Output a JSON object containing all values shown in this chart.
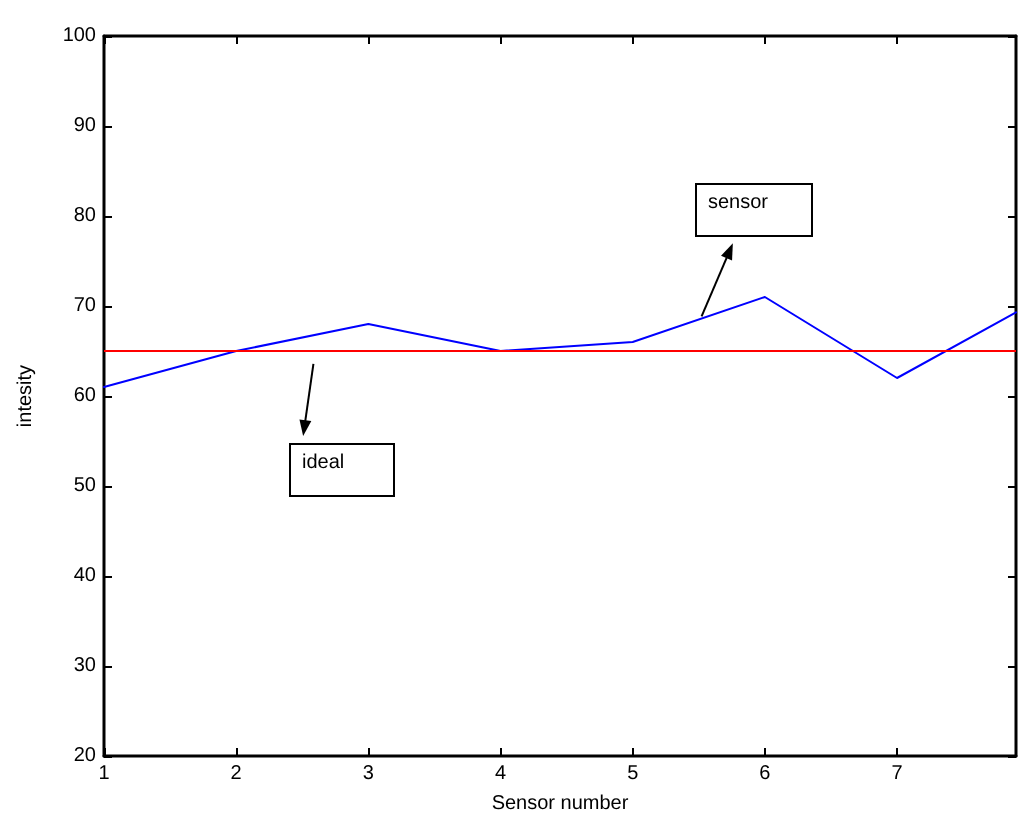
{
  "chart_data": {
    "type": "line",
    "xlabel": "Sensor number",
    "ylabel": "intesity",
    "x": [
      1,
      2,
      3,
      4,
      5,
      6,
      7,
      7.9
    ],
    "series": [
      {
        "color": "#0000ff",
        "values": [
          61,
          65,
          68,
          65,
          66,
          71,
          62,
          69.3
        ]
      }
    ],
    "xlim": [
      1,
      7.9
    ],
    "xticks": [
      1,
      2,
      3,
      4,
      5,
      6,
      7
    ],
    "ylim": [
      20,
      100
    ],
    "yticks": [
      20,
      30,
      40,
      50,
      60,
      70,
      80,
      90,
      100
    ],
    "ref_lines": [
      {
        "axis": "y",
        "value": 65,
        "color": "#ff0000"
      }
    ],
    "annotations": [
      "ideal",
      "sensor"
    ],
    "grid": false,
    "marker": "none",
    "line_style": "solid"
  }
}
